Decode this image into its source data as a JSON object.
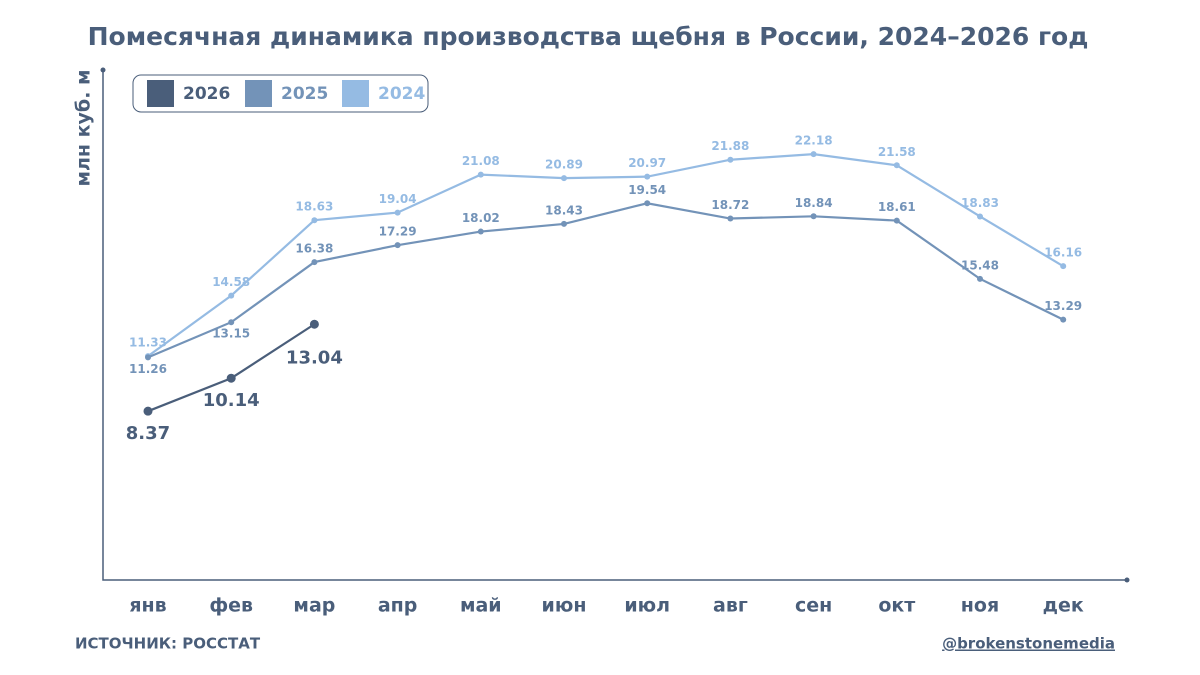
{
  "chart_data": {
    "type": "line",
    "title": "Помесячная динамика производства щебня в России, 2024–2026 год",
    "y_label": "млн куб. м",
    "source": "ИСТОЧНИК: РОССТАТ",
    "credit": "@brokenstonemedia",
    "categories": [
      "янв",
      "фев",
      "мар",
      "апр",
      "май",
      "июн",
      "июл",
      "авг",
      "сен",
      "окт",
      "ноя",
      "дек"
    ],
    "series": [
      {
        "name": "2026",
        "color": "#4a5e7a",
        "values": [
          8.37,
          10.14,
          13.04,
          null,
          null,
          null,
          null,
          null,
          null,
          null,
          null,
          null
        ]
      },
      {
        "name": "2025",
        "color": "#7393b8",
        "values": [
          11.26,
          13.15,
          16.38,
          17.29,
          18.02,
          18.43,
          19.54,
          18.72,
          18.84,
          18.61,
          15.48,
          13.29
        ]
      },
      {
        "name": "2024",
        "color": "#95bbe3",
        "values": [
          11.33,
          14.58,
          18.63,
          19.04,
          21.08,
          20.89,
          20.97,
          21.88,
          22.18,
          21.58,
          18.83,
          16.16
        ]
      }
    ],
    "ylim": [
      -0.7,
      26.7
    ],
    "legend": "top-left"
  }
}
